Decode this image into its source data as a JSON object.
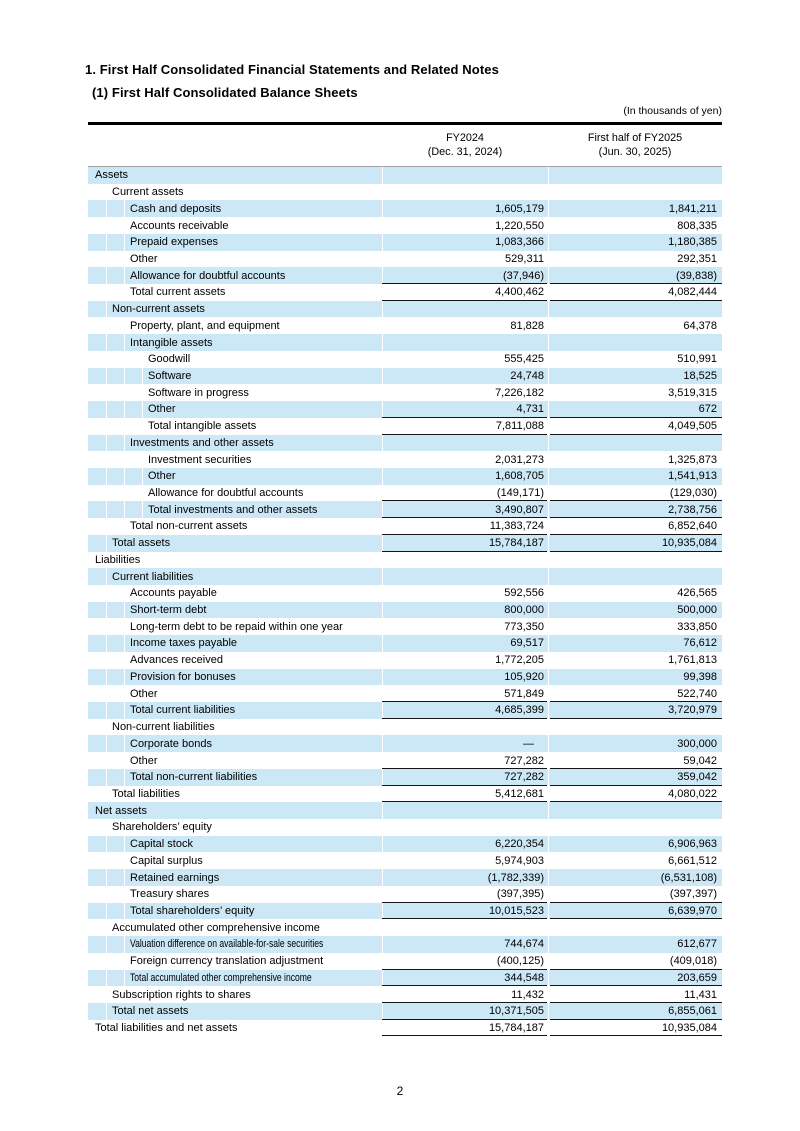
{
  "colors": {
    "stripe_blue": "#cce7f5",
    "rule_black": "#141414"
  },
  "page": {
    "number": "2"
  },
  "header": {
    "title_line1": "1. First Half Consolidated Financial Statements and Related Notes",
    "title_line2": "(1) First Half Consolidated Balance Sheets",
    "unit_note": "(In thousands of yen)",
    "columns": [
      {
        "line1": "FY2024",
        "line2": "(Dec. 31, 2024)"
      },
      {
        "line1": "First half of FY2025",
        "line2": "(Jun. 30, 2025)"
      }
    ]
  },
  "table": {
    "rows": [
      {
        "label": "Assets",
        "indent": 0,
        "v1": "",
        "v2": ""
      },
      {
        "label": "Current assets",
        "indent": 1,
        "v1": "",
        "v2": ""
      },
      {
        "label": "Cash and deposits",
        "indent": 2,
        "v1": "1,605,179",
        "v2": "1,841,211"
      },
      {
        "label": "Accounts receivable",
        "indent": 2,
        "v1": "1,220,550",
        "v2": "808,335"
      },
      {
        "label": "Prepaid expenses",
        "indent": 2,
        "v1": "1,083,366",
        "v2": "1,180,385"
      },
      {
        "label": "Other",
        "indent": 2,
        "v1": "529,311",
        "v2": "292,351"
      },
      {
        "label": "Allowance for doubtful accounts",
        "indent": 2,
        "v1": "(37,946)",
        "v2": "(39,838)"
      },
      {
        "label": "Total current assets",
        "indent": 2,
        "v1": "4,400,462",
        "v2": "4,082,444",
        "rt": true
      },
      {
        "label": "Non-current assets",
        "indent": 1,
        "v1": "",
        "v2": "",
        "rt": true
      },
      {
        "label": "Property, plant, and equipment",
        "indent": 2,
        "v1": "81,828",
        "v2": "64,378"
      },
      {
        "label": "Intangible assets",
        "indent": 2,
        "v1": "",
        "v2": ""
      },
      {
        "label": "Goodwill",
        "indent": 3,
        "v1": "555,425",
        "v2": "510,991"
      },
      {
        "label": "Software",
        "indent": 3,
        "v1": "24,748",
        "v2": "18,525"
      },
      {
        "label": "Software in progress",
        "indent": 3,
        "v1": "7,226,182",
        "v2": "3,519,315"
      },
      {
        "label": "Other",
        "indent": 3,
        "v1": "4,731",
        "v2": "672"
      },
      {
        "label": "Total intangible assets",
        "indent": 3,
        "v1": "7,811,088",
        "v2": "4,049,505",
        "rt": true
      },
      {
        "label": "Investments and other assets",
        "indent": 2,
        "v1": "",
        "v2": "",
        "rt": true
      },
      {
        "label": "Investment securities",
        "indent": 3,
        "v1": "2,031,273",
        "v2": "1,325,873"
      },
      {
        "label": "Other",
        "indent": 3,
        "v1": "1,608,705",
        "v2": "1,541,913"
      },
      {
        "label": "Allowance for doubtful accounts",
        "indent": 3,
        "v1": "(149,171)",
        "v2": "(129,030)"
      },
      {
        "label": "Total investments and other assets",
        "indent": 3,
        "v1": "3,490,807",
        "v2": "2,738,756",
        "rt": true
      },
      {
        "label": "Total non-current assets",
        "indent": 2,
        "v1": "11,383,724",
        "v2": "6,852,640",
        "rt": true
      },
      {
        "label": "Total assets",
        "indent": 1,
        "v1": "15,784,187",
        "v2": "10,935,084",
        "rt": true
      },
      {
        "label": "Liabilities",
        "indent": 0,
        "v1": "",
        "v2": "",
        "rt": true
      },
      {
        "label": "Current liabilities",
        "indent": 1,
        "v1": "",
        "v2": ""
      },
      {
        "label": "Accounts payable",
        "indent": 2,
        "v1": "592,556",
        "v2": "426,565"
      },
      {
        "label": "Short-term debt",
        "indent": 2,
        "v1": "800,000",
        "v2": "500,000"
      },
      {
        "label": "Long-term debt to be repaid within one year",
        "indent": 2,
        "v1": "773,350",
        "v2": "333,850"
      },
      {
        "label": "Income taxes payable",
        "indent": 2,
        "v1": "69,517",
        "v2": "76,612"
      },
      {
        "label": "Advances received",
        "indent": 2,
        "v1": "1,772,205",
        "v2": "1,761,813"
      },
      {
        "label": "Provision for bonuses",
        "indent": 2,
        "v1": "105,920",
        "v2": "99,398"
      },
      {
        "label": "Other",
        "indent": 2,
        "v1": "571,849",
        "v2": "522,740"
      },
      {
        "label": "Total current liabilities",
        "indent": 2,
        "v1": "4,685,399",
        "v2": "3,720,979",
        "rt": true
      },
      {
        "label": "Non-current liabilities",
        "indent": 1,
        "v1": "",
        "v2": "",
        "rt": true
      },
      {
        "label": "Corporate bonds",
        "indent": 2,
        "v1": "—",
        "v2": "300,000"
      },
      {
        "label": "Other",
        "indent": 2,
        "v1": "727,282",
        "v2": "59,042"
      },
      {
        "label": "Total non-current liabilities",
        "indent": 2,
        "v1": "727,282",
        "v2": "359,042",
        "rt": true
      },
      {
        "label": "Total liabilities",
        "indent": 1,
        "v1": "5,412,681",
        "v2": "4,080,022",
        "rt": true
      },
      {
        "label": "Net assets",
        "indent": 0,
        "v1": "",
        "v2": "",
        "rt": true
      },
      {
        "label": "Shareholders’ equity",
        "indent": 1,
        "v1": "",
        "v2": ""
      },
      {
        "label": "Capital stock",
        "indent": 2,
        "v1": "6,220,354",
        "v2": "6,906,963"
      },
      {
        "label": "Capital surplus",
        "indent": 2,
        "v1": "5,974,903",
        "v2": "6,661,512"
      },
      {
        "label": "Retained earnings",
        "indent": 2,
        "v1": "(1,782,339)",
        "v2": "(6,531,108)"
      },
      {
        "label": "Treasury shares",
        "indent": 2,
        "v1": "(397,395)",
        "v2": "(397,397)"
      },
      {
        "label": "Total shareholders’ equity",
        "indent": 2,
        "v1": "10,015,523",
        "v2": "6,639,970",
        "rt": true
      },
      {
        "label": "Accumulated other comprehensive income",
        "indent": 1,
        "v1": "",
        "v2": "",
        "rt": true
      },
      {
        "label": "Valuation difference on available-for-sale securities",
        "indent": 2,
        "v1": "744,674",
        "v2": "612,677",
        "condensed": true
      },
      {
        "label": "Foreign currency translation adjustment",
        "indent": 2,
        "v1": "(400,125)",
        "v2": "(409,018)"
      },
      {
        "label": "Total accumulated other comprehensive income",
        "indent": 2,
        "v1": "344,548",
        "v2": "203,659",
        "rt": true,
        "condensed": true
      },
      {
        "label": "Subscription rights to shares",
        "indent": 1,
        "v1": "11,432",
        "v2": "11,431",
        "rt": true
      },
      {
        "label": "Total net assets",
        "indent": 1,
        "v1": "10,371,505",
        "v2": "6,855,061",
        "rt": true
      },
      {
        "label": "Total liabilities and net assets",
        "indent": 0,
        "v1": "15,784,187",
        "v2": "10,935,084",
        "rt": true,
        "rb": true
      }
    ]
  }
}
